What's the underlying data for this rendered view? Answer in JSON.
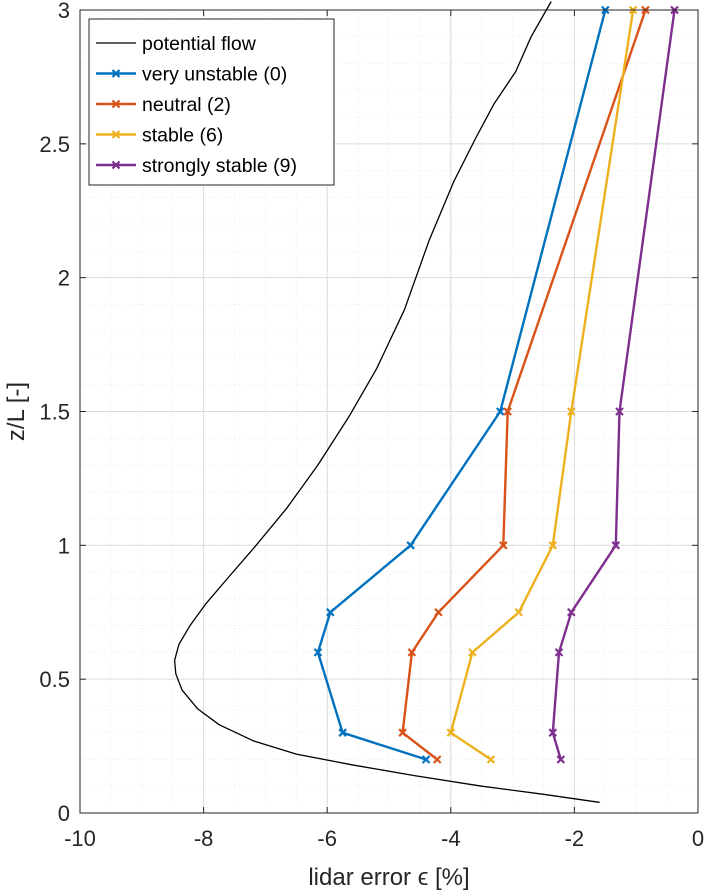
{
  "chart_data": {
    "type": "line",
    "xlabel": "lidar error ϵ [%]",
    "ylabel": "z/L [-]",
    "xlim": [
      -10,
      0
    ],
    "ylim": [
      0,
      3
    ],
    "x_ticks": [
      -10,
      -8,
      -6,
      -4,
      -2,
      0
    ],
    "y_ticks": [
      0,
      0.5,
      1,
      1.5,
      2,
      2.5,
      3
    ],
    "x_tick_labels": [
      "-10",
      "-8",
      "-6",
      "-4",
      "-2",
      "0"
    ],
    "y_tick_labels": [
      "0",
      "0.5",
      "1",
      "1.5",
      "2",
      "2.5",
      "3"
    ],
    "grid": true,
    "minor_grid": true,
    "legend_position": "top-left",
    "series": [
      {
        "name": "potential flow",
        "color": "#000000",
        "marker": "none",
        "points": [
          [
            -1.6,
            0.04
          ],
          [
            -2.5,
            0.07
          ],
          [
            -3.5,
            0.1
          ],
          [
            -4.6,
            0.14
          ],
          [
            -5.6,
            0.18
          ],
          [
            -6.5,
            0.22
          ],
          [
            -7.2,
            0.27
          ],
          [
            -7.75,
            0.33
          ],
          [
            -8.1,
            0.39
          ],
          [
            -8.35,
            0.46
          ],
          [
            -8.45,
            0.52
          ],
          [
            -8.47,
            0.57
          ],
          [
            -8.4,
            0.63
          ],
          [
            -8.22,
            0.7
          ],
          [
            -7.97,
            0.78
          ],
          [
            -7.6,
            0.88
          ],
          [
            -7.15,
            1.0
          ],
          [
            -6.65,
            1.14
          ],
          [
            -6.15,
            1.3
          ],
          [
            -5.65,
            1.48
          ],
          [
            -5.2,
            1.66
          ],
          [
            -4.75,
            1.88
          ],
          [
            -4.35,
            2.14
          ],
          [
            -3.95,
            2.36
          ],
          [
            -3.6,
            2.52
          ],
          [
            -3.3,
            2.65
          ],
          [
            -2.95,
            2.77
          ],
          [
            -2.7,
            2.9
          ],
          [
            -2.38,
            3.03
          ]
        ]
      },
      {
        "name": "very unstable (0)",
        "color": "#0072BD",
        "marker": "x",
        "points": [
          [
            -4.4,
            0.2
          ],
          [
            -5.75,
            0.3
          ],
          [
            -6.15,
            0.6
          ],
          [
            -5.95,
            0.75
          ],
          [
            -4.65,
            1.0
          ],
          [
            -3.2,
            1.5
          ],
          [
            -1.5,
            3.0
          ]
        ]
      },
      {
        "name": "neutral (2)",
        "color": "#D95319",
        "marker": "x",
        "points": [
          [
            -4.22,
            0.2
          ],
          [
            -4.78,
            0.3
          ],
          [
            -4.63,
            0.6
          ],
          [
            -4.2,
            0.75
          ],
          [
            -3.15,
            1.0
          ],
          [
            -3.08,
            1.5
          ],
          [
            -0.85,
            3.0
          ]
        ]
      },
      {
        "name": "stable (6)",
        "color": "#EDB120",
        "marker": "x",
        "points": [
          [
            -3.35,
            0.2
          ],
          [
            -4.0,
            0.3
          ],
          [
            -3.65,
            0.6
          ],
          [
            -2.9,
            0.75
          ],
          [
            -2.35,
            1.0
          ],
          [
            -2.05,
            1.5
          ],
          [
            -1.05,
            3.0
          ]
        ]
      },
      {
        "name": "strongly stable (9)",
        "color": "#7E2F8E",
        "marker": "x",
        "points": [
          [
            -2.22,
            0.2
          ],
          [
            -2.35,
            0.3
          ],
          [
            -2.25,
            0.6
          ],
          [
            -2.05,
            0.75
          ],
          [
            -1.33,
            1.0
          ],
          [
            -1.27,
            1.5
          ],
          [
            -0.38,
            3.0
          ]
        ]
      }
    ]
  }
}
